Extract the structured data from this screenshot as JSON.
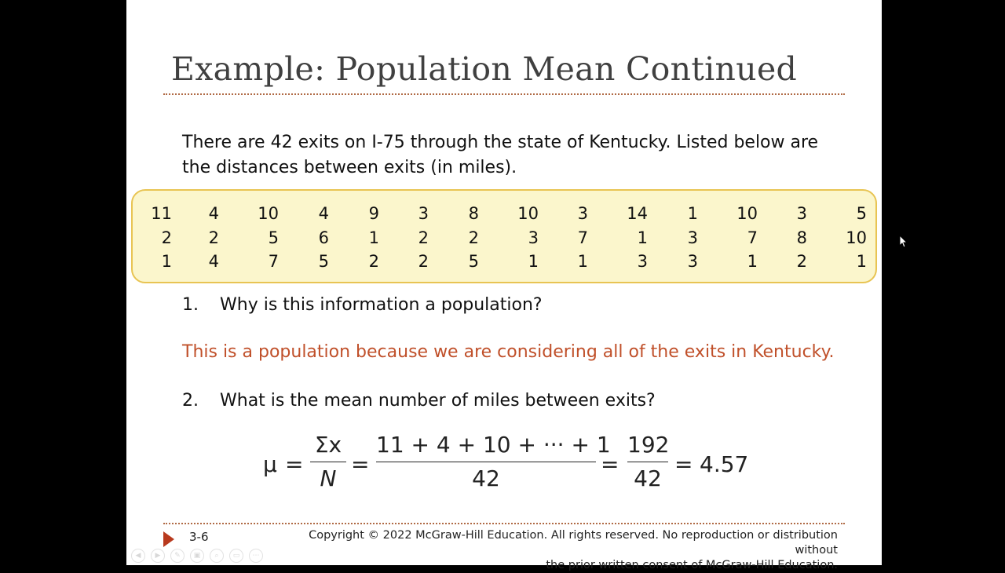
{
  "slide": {
    "title": "Example: Population Mean Continued",
    "intro_line1": "There are 42 exits on I-75 through the state of Kentucky. Listed below are",
    "intro_line2": "the distances between exits (in miles).",
    "data_rows": [
      [
        "11",
        "4",
        "10",
        "4",
        "9",
        "3",
        "8",
        "10",
        "3",
        "14",
        "1",
        "10",
        "3",
        "5"
      ],
      [
        "2",
        "2",
        "5",
        "6",
        "1",
        "2",
        "2",
        "3",
        "7",
        "1",
        "3",
        "7",
        "8",
        "10"
      ],
      [
        "1",
        "4",
        "7",
        "5",
        "2",
        "2",
        "5",
        "1",
        "1",
        "3",
        "3",
        "1",
        "2",
        "1"
      ]
    ],
    "question1_num": "1.",
    "question1_text": "Why is this information a population?",
    "answer1": "This is a population because we are considering all of the exits in Kentucky.",
    "question2_num": "2.",
    "question2_text": "What is the mean number of miles between exits?",
    "formula": {
      "mu": "μ",
      "eq": "=",
      "sum_x": "Σx",
      "N": "N",
      "sum_expr": "11 + 4 + 10 + ··· + 1",
      "n42": "42",
      "total": "192",
      "result": "4.57"
    },
    "slide_number": "3-6",
    "copyright_line1": "Copyright © 2022 McGraw-Hill Education. All rights reserved. No reproduction or distribution without",
    "copyright_line2": "the prior written consent of McGraw-Hill Education."
  },
  "colors": {
    "title": "#404040",
    "answer": "#c0502a",
    "box_fill": "#fbf6cc",
    "box_border": "#e8c453",
    "divider": "#b06a45",
    "arrow": "#b83a1e"
  },
  "toolbar": {
    "icons": [
      "prev-icon",
      "next-icon",
      "pen-icon",
      "copy-icon",
      "zoom-icon",
      "screen-icon",
      "more-icon"
    ]
  }
}
